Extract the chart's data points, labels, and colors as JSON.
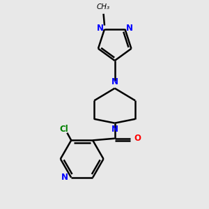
{
  "background_color": "#e8e8e8",
  "bond_color": "#000000",
  "n_color": "#0000ff",
  "o_color": "#ff0000",
  "cl_color": "#008000",
  "line_width": 1.8,
  "figsize": [
    3.0,
    3.0
  ],
  "dpi": 100,
  "xlim": [
    0,
    10
  ],
  "ylim": [
    0,
    10
  ]
}
